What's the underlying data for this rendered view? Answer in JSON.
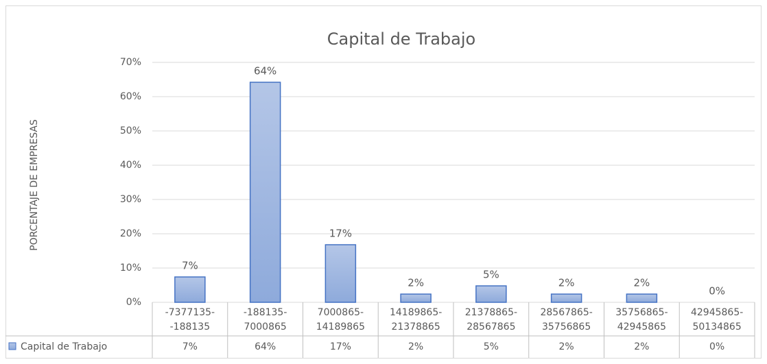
{
  "chart_data": {
    "type": "bar",
    "title": "Capital  de Trabajo",
    "y_axis_label": "PORCENTAJE DE EMPRESAS",
    "categories": [
      "-7377135--188135",
      "-188135-7000865",
      "7000865-14189865",
      "14189865-21378865",
      "21378865-28567865",
      "28567865-35756865",
      "35756865-42945865",
      "42945865-50134865"
    ],
    "series": [
      {
        "name": "Capital  de Trabajo",
        "color": "#8faadc",
        "values": [
          7.4,
          64.2,
          16.8,
          2.4,
          4.8,
          2.4,
          2.4,
          0
        ],
        "value_labels": [
          "7%",
          "64%",
          "17%",
          "2%",
          "5%",
          "2%",
          "2%",
          "0%"
        ]
      }
    ],
    "ylim": [
      0,
      70
    ],
    "yticks": [
      {
        "value": 0,
        "label": "0%"
      },
      {
        "value": 10,
        "label": "10%"
      },
      {
        "value": 20,
        "label": "20%"
      },
      {
        "value": 30,
        "label": "30%"
      },
      {
        "value": 40,
        "label": "40%"
      },
      {
        "value": 50,
        "label": "50%"
      },
      {
        "value": 60,
        "label": "60%"
      },
      {
        "value": 70,
        "label": "70%"
      }
    ],
    "grid": true
  }
}
